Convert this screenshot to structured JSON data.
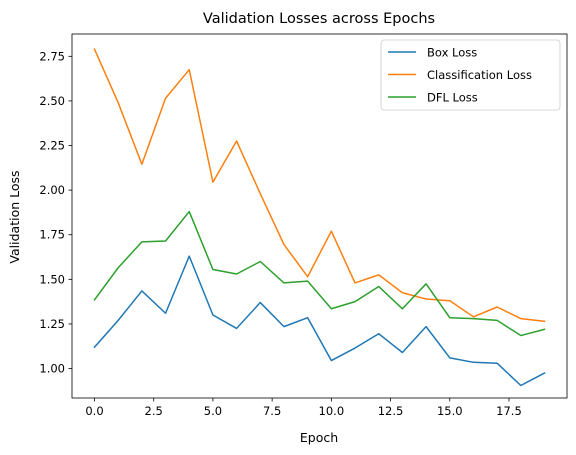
{
  "chart_data": {
    "type": "line",
    "title": "Validation Losses across Epochs",
    "xlabel": "Epoch",
    "ylabel": "Validation Loss",
    "xlim": [
      -0.95,
      19.95
    ],
    "ylim": [
      0.835,
      2.875
    ],
    "xticks": [
      0.0,
      2.5,
      5.0,
      7.5,
      10.0,
      12.5,
      15.0,
      17.5
    ],
    "xtick_labels": [
      "0.0",
      "2.5",
      "5.0",
      "7.5",
      "10.0",
      "12.5",
      "15.0",
      "17.5"
    ],
    "yticks": [
      1.0,
      1.25,
      1.5,
      1.75,
      2.0,
      2.25,
      2.5,
      2.75
    ],
    "ytick_labels": [
      "1.00",
      "1.25",
      "1.50",
      "1.75",
      "2.00",
      "2.25",
      "2.50",
      "2.75"
    ],
    "grid": false,
    "legend_position": "top-right",
    "x": [
      0,
      1,
      2,
      3,
      4,
      5,
      6,
      7,
      8,
      9,
      10,
      11,
      12,
      13,
      14,
      15,
      16,
      17,
      18,
      19
    ],
    "series": [
      {
        "name": "Box Loss",
        "color": "#1f77b4",
        "values": [
          1.12,
          1.27,
          1.435,
          1.31,
          1.63,
          1.3,
          1.225,
          1.37,
          1.235,
          1.285,
          1.045,
          1.115,
          1.195,
          1.09,
          1.235,
          1.06,
          1.035,
          1.03,
          0.905,
          0.975
        ]
      },
      {
        "name": "Classification Loss",
        "color": "#ff7f0e",
        "values": [
          2.79,
          2.49,
          2.145,
          2.515,
          2.675,
          2.045,
          2.275,
          1.98,
          1.695,
          1.515,
          1.77,
          1.48,
          1.525,
          1.425,
          1.39,
          1.38,
          1.29,
          1.345,
          1.28,
          1.265
        ]
      },
      {
        "name": "DFL Loss",
        "color": "#2ca02c",
        "values": [
          1.385,
          1.565,
          1.71,
          1.715,
          1.88,
          1.555,
          1.53,
          1.6,
          1.48,
          1.49,
          1.335,
          1.375,
          1.46,
          1.335,
          1.475,
          1.285,
          1.28,
          1.27,
          1.185,
          1.22
        ]
      }
    ]
  }
}
